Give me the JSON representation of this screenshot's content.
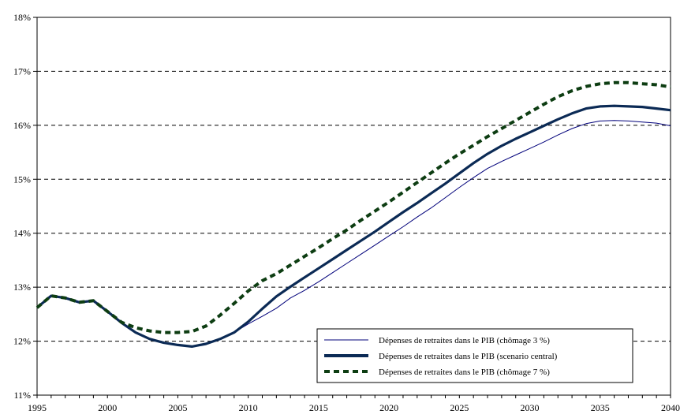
{
  "chart_data": {
    "type": "line",
    "title": "",
    "xlabel": "",
    "ylabel": "",
    "xlim": [
      1995,
      2040
    ],
    "ylim": [
      11,
      18
    ],
    "x_ticks": [
      "1995",
      "2000",
      "2005",
      "2010",
      "2015",
      "2020",
      "2025",
      "2030",
      "2035",
      "2040"
    ],
    "y_ticks": [
      "11%",
      "12%",
      "13%",
      "14%",
      "15%",
      "16%",
      "17%",
      "18%"
    ],
    "grid": "horizontal dashed",
    "legend_position": "bottom-right",
    "x": [
      1995,
      1996,
      1997,
      1998,
      1999,
      2000,
      2001,
      2002,
      2003,
      2004,
      2005,
      2006,
      2007,
      2008,
      2009,
      2010,
      2011,
      2012,
      2013,
      2014,
      2015,
      2016,
      2017,
      2018,
      2019,
      2020,
      2021,
      2022,
      2023,
      2024,
      2025,
      2026,
      2027,
      2028,
      2029,
      2030,
      2031,
      2032,
      2033,
      2034,
      2035,
      2036,
      2037,
      2038,
      2039,
      2040
    ],
    "series": [
      {
        "name": "Dépenses de retraites dans le PIB (chômage 3 %)",
        "color": "#00007a",
        "style": "thin-solid",
        "values": [
          12.62,
          12.84,
          12.8,
          12.72,
          12.75,
          12.55,
          12.34,
          12.16,
          12.04,
          11.97,
          11.93,
          11.9,
          11.95,
          12.04,
          12.16,
          12.32,
          12.46,
          12.61,
          12.8,
          12.94,
          13.1,
          13.27,
          13.44,
          13.61,
          13.78,
          13.95,
          14.12,
          14.3,
          14.47,
          14.66,
          14.85,
          15.03,
          15.2,
          15.33,
          15.45,
          15.57,
          15.69,
          15.82,
          15.94,
          16.03,
          16.08,
          16.09,
          16.08,
          16.06,
          16.04,
          15.99
        ]
      },
      {
        "name": "Dépenses de retraites dans le PIB (scenario central)",
        "color": "#0b2a55",
        "style": "thick-solid",
        "values": [
          12.62,
          12.84,
          12.8,
          12.72,
          12.75,
          12.55,
          12.34,
          12.16,
          12.04,
          11.97,
          11.93,
          11.9,
          11.95,
          12.04,
          12.16,
          12.36,
          12.6,
          12.83,
          13.01,
          13.18,
          13.35,
          13.52,
          13.69,
          13.86,
          14.03,
          14.21,
          14.39,
          14.56,
          14.74,
          14.92,
          15.11,
          15.3,
          15.47,
          15.62,
          15.75,
          15.87,
          15.99,
          16.11,
          16.22,
          16.31,
          16.35,
          16.36,
          16.35,
          16.34,
          16.31,
          16.28
        ]
      },
      {
        "name": "Dépenses de retraites dans le PIB (chômage 7 %)",
        "color": "#0d3d12",
        "style": "dashed",
        "values": [
          12.62,
          12.84,
          12.8,
          12.72,
          12.75,
          12.55,
          12.35,
          12.25,
          12.19,
          12.16,
          12.16,
          12.18,
          12.28,
          12.48,
          12.7,
          12.93,
          13.12,
          13.25,
          13.41,
          13.57,
          13.73,
          13.9,
          14.06,
          14.24,
          14.41,
          14.58,
          14.76,
          14.94,
          15.12,
          15.3,
          15.47,
          15.63,
          15.79,
          15.94,
          16.09,
          16.24,
          16.39,
          16.53,
          16.64,
          16.72,
          16.77,
          16.79,
          16.79,
          16.77,
          16.75,
          16.71
        ]
      }
    ]
  }
}
